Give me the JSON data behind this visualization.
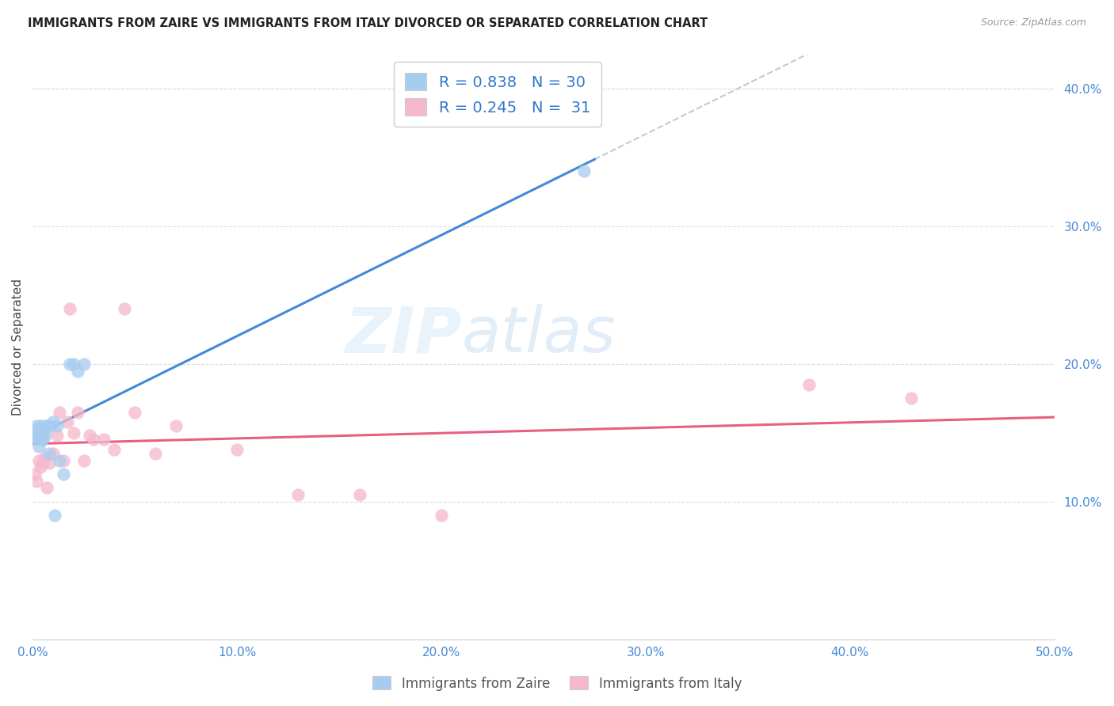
{
  "title": "IMMIGRANTS FROM ZAIRE VS IMMIGRANTS FROM ITALY DIVORCED OR SEPARATED CORRELATION CHART",
  "source": "Source: ZipAtlas.com",
  "ylabel": "Divorced or Separated",
  "xmin": 0.0,
  "xmax": 0.5,
  "ymin": 0.0,
  "ymax": 0.425,
  "watermark_zip": "ZIP",
  "watermark_atlas": "atlas",
  "legend1_r": "0.838",
  "legend1_n": "30",
  "legend2_r": "0.245",
  "legend2_n": "31",
  "color_blue": "#a8ccf0",
  "color_pink": "#f5b8cc",
  "color_blue_line": "#4488d8",
  "color_pink_line": "#e86080",
  "color_gray_dashed": "#c8c8c8",
  "legend_label1": "Immigrants from Zaire",
  "legend_label2": "Immigrants from Italy",
  "zaire_x": [
    0.001,
    0.001,
    0.001,
    0.002,
    0.002,
    0.002,
    0.003,
    0.003,
    0.003,
    0.004,
    0.004,
    0.004,
    0.005,
    0.005,
    0.005,
    0.006,
    0.006,
    0.007,
    0.008,
    0.009,
    0.01,
    0.011,
    0.012,
    0.013,
    0.015,
    0.018,
    0.02,
    0.022,
    0.025,
    0.27
  ],
  "zaire_y": [
    0.148,
    0.152,
    0.145,
    0.15,
    0.155,
    0.148,
    0.153,
    0.148,
    0.14,
    0.155,
    0.148,
    0.145,
    0.15,
    0.145,
    0.152,
    0.148,
    0.155,
    0.155,
    0.135,
    0.155,
    0.158,
    0.09,
    0.155,
    0.13,
    0.12,
    0.2,
    0.2,
    0.195,
    0.2,
    0.34
  ],
  "italy_x": [
    0.001,
    0.002,
    0.003,
    0.004,
    0.005,
    0.006,
    0.007,
    0.008,
    0.01,
    0.012,
    0.013,
    0.015,
    0.017,
    0.018,
    0.02,
    0.022,
    0.025,
    0.028,
    0.03,
    0.035,
    0.04,
    0.045,
    0.05,
    0.06,
    0.07,
    0.1,
    0.13,
    0.16,
    0.2,
    0.38,
    0.43
  ],
  "italy_y": [
    0.12,
    0.115,
    0.13,
    0.125,
    0.128,
    0.132,
    0.11,
    0.128,
    0.135,
    0.148,
    0.165,
    0.13,
    0.158,
    0.24,
    0.15,
    0.165,
    0.13,
    0.148,
    0.145,
    0.145,
    0.138,
    0.24,
    0.165,
    0.135,
    0.155,
    0.138,
    0.105,
    0.105,
    0.09,
    0.185,
    0.175
  ]
}
